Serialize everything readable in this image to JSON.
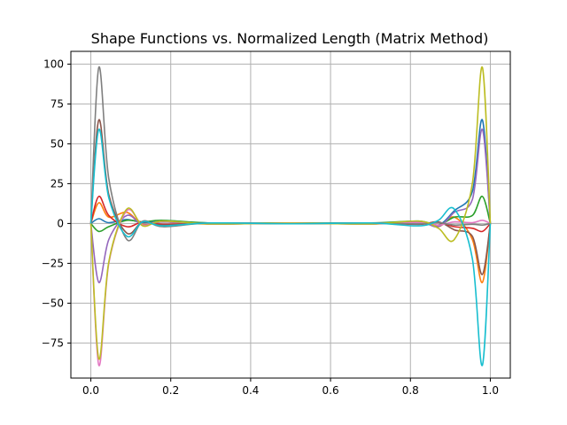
{
  "chart_data": {
    "type": "line",
    "title": "Shape Functions vs. Normalized Length (Matrix Method)",
    "xlabel": "",
    "ylabel": "",
    "xlim": [
      -0.05,
      1.05
    ],
    "ylim": [
      -97,
      108
    ],
    "grid": true,
    "x_ticks": [
      0.0,
      0.2,
      0.4,
      0.6,
      0.8,
      1.0
    ],
    "x_tick_labels": [
      "0.0",
      "0.2",
      "0.4",
      "0.6",
      "0.8",
      "1.0"
    ],
    "y_ticks": [
      -75,
      -50,
      -25,
      0,
      25,
      50,
      75,
      100
    ],
    "y_tick_labels": [
      "−75",
      "−50",
      "−25",
      "0",
      "25",
      "50",
      "75",
      "100"
    ],
    "series": [
      {
        "color": "#1f77b4",
        "x": [
          0.0,
          0.02,
          0.045,
          0.09,
          0.13,
          0.18,
          0.3,
          0.5,
          0.7,
          0.82,
          0.87,
          0.91,
          0.955,
          0.98,
          1.0
        ],
        "y": [
          0,
          3,
          0.5,
          2.5,
          0.5,
          1,
          0.3,
          0.2,
          0.3,
          0.5,
          -1,
          8,
          20,
          65,
          0
        ]
      },
      {
        "color": "#ff7f0e",
        "x": [
          0.0,
          0.02,
          0.045,
          0.09,
          0.13,
          0.18,
          0.3,
          0.5,
          0.7,
          0.82,
          0.87,
          0.91,
          0.955,
          0.98,
          1.0
        ],
        "y": [
          0,
          13,
          4,
          7,
          -0.5,
          1,
          -0.4,
          0.3,
          -0.3,
          0.8,
          -2,
          4,
          -10,
          -37,
          0
        ]
      },
      {
        "color": "#2ca02c",
        "x": [
          0.0,
          0.02,
          0.045,
          0.09,
          0.13,
          0.18,
          0.3,
          0.5,
          0.7,
          0.82,
          0.87,
          0.91,
          0.955,
          0.98,
          1.0
        ],
        "y": [
          0,
          -5,
          -2,
          2,
          1,
          2,
          0.3,
          0.2,
          0.3,
          1.5,
          -1,
          4,
          5,
          17,
          0
        ]
      },
      {
        "color": "#d62728",
        "x": [
          0.0,
          0.02,
          0.045,
          0.09,
          0.13,
          0.18,
          0.3,
          0.5,
          0.7,
          0.82,
          0.87,
          0.91,
          0.955,
          0.98,
          1.0
        ],
        "y": [
          0,
          17,
          5,
          -2,
          1,
          -0.5,
          0.2,
          -0.2,
          0.2,
          -0.5,
          0.5,
          -2,
          -3,
          -5,
          0
        ]
      },
      {
        "color": "#9467bd",
        "x": [
          0.0,
          0.02,
          0.045,
          0.09,
          0.13,
          0.18,
          0.3,
          0.5,
          0.7,
          0.82,
          0.87,
          0.91,
          0.955,
          0.98,
          1.0
        ],
        "y": [
          0,
          -37,
          -10,
          5,
          -1,
          1,
          -0.3,
          0.2,
          -0.3,
          1,
          -2,
          7,
          15,
          59,
          0
        ]
      },
      {
        "color": "#8c564b",
        "x": [
          0.0,
          0.02,
          0.045,
          0.09,
          0.13,
          0.18,
          0.3,
          0.5,
          0.7,
          0.82,
          0.87,
          0.91,
          0.955,
          0.98,
          1.0
        ],
        "y": [
          0,
          65,
          18,
          -6,
          1,
          -1,
          0.3,
          -0.2,
          0.3,
          -0.5,
          1,
          -4,
          -8,
          -32,
          0
        ]
      },
      {
        "color": "#e377c2",
        "x": [
          0.0,
          0.02,
          0.045,
          0.09,
          0.13,
          0.18,
          0.3,
          0.5,
          0.7,
          0.82,
          0.87,
          0.91,
          0.955,
          0.98,
          1.0
        ],
        "y": [
          0,
          -89,
          -25,
          8,
          -1,
          1.5,
          -0.3,
          0.2,
          -0.3,
          0.5,
          -1,
          1,
          0.5,
          2,
          0
        ]
      },
      {
        "color": "#7f7f7f",
        "x": [
          0.0,
          0.02,
          0.045,
          0.09,
          0.13,
          0.18,
          0.3,
          0.5,
          0.7,
          0.82,
          0.87,
          0.91,
          0.955,
          0.98,
          1.0
        ],
        "y": [
          0,
          98,
          28,
          -10,
          1.5,
          -2,
          0.3,
          -0.2,
          0.3,
          -0.3,
          0.5,
          -1,
          -0.5,
          -1,
          0
        ]
      },
      {
        "color": "#bcbd22",
        "x": [
          0.0,
          0.02,
          0.045,
          0.09,
          0.13,
          0.18,
          0.3,
          0.5,
          0.7,
          0.82,
          0.87,
          0.91,
          0.955,
          0.98,
          1.0
        ],
        "y": [
          0,
          -85,
          -24,
          9,
          -1.5,
          1.5,
          -0.3,
          0.2,
          -0.3,
          1.5,
          -3,
          -10,
          25,
          98,
          0
        ]
      },
      {
        "color": "#17becf",
        "x": [
          0.0,
          0.02,
          0.045,
          0.09,
          0.13,
          0.18,
          0.3,
          0.5,
          0.7,
          0.82,
          0.87,
          0.91,
          0.955,
          0.98,
          1.0
        ],
        "y": [
          0,
          59,
          16,
          -8,
          1,
          -1.5,
          0.3,
          -0.2,
          0.3,
          -1.5,
          2,
          9,
          -22,
          -89,
          0
        ]
      }
    ]
  }
}
